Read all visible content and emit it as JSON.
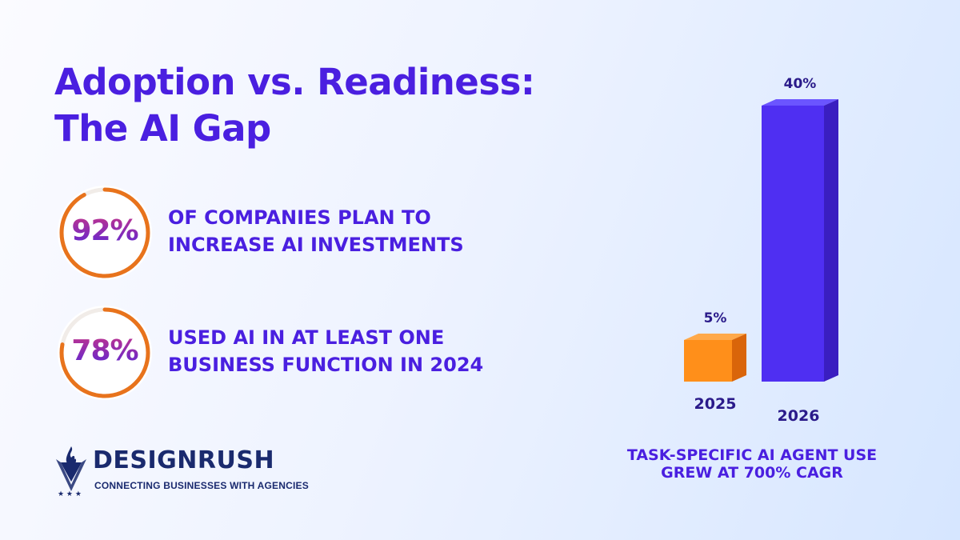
{
  "title": {
    "line1": "Adoption vs. Readiness:",
    "line2": "The AI Gap"
  },
  "stats": [
    {
      "value": "92%",
      "fraction": 0.92,
      "line1": "OF COMPANIES PLAN TO",
      "line2": "INCREASE AI INVESTMENTS"
    },
    {
      "value": "78%",
      "fraction": 0.78,
      "line1": "USED AI IN AT LEAST ONE",
      "line2": "BUSINESS FUNCTION IN 2024"
    }
  ],
  "logo": {
    "name": "DESIGNRUSH",
    "tagline": "CONNECTING BUSINESSES WITH AGENCIES",
    "icon": "designrush-flame-shield-icon"
  },
  "chart_data": {
    "type": "bar",
    "categories": [
      "2025",
      "2026"
    ],
    "values": [
      5,
      40
    ],
    "value_labels": [
      "5%",
      "40%"
    ],
    "colors": [
      "#ff8a10",
      "#4a2df0"
    ],
    "caption_line1": "TASK-SPECIFIC AI AGENT USE",
    "caption_line2": "GREW AT 700% CAGR"
  },
  "colors": {
    "accent": "#4a1fe0",
    "ring": "#e8731c",
    "brand_navy": "#1a2a6e"
  }
}
